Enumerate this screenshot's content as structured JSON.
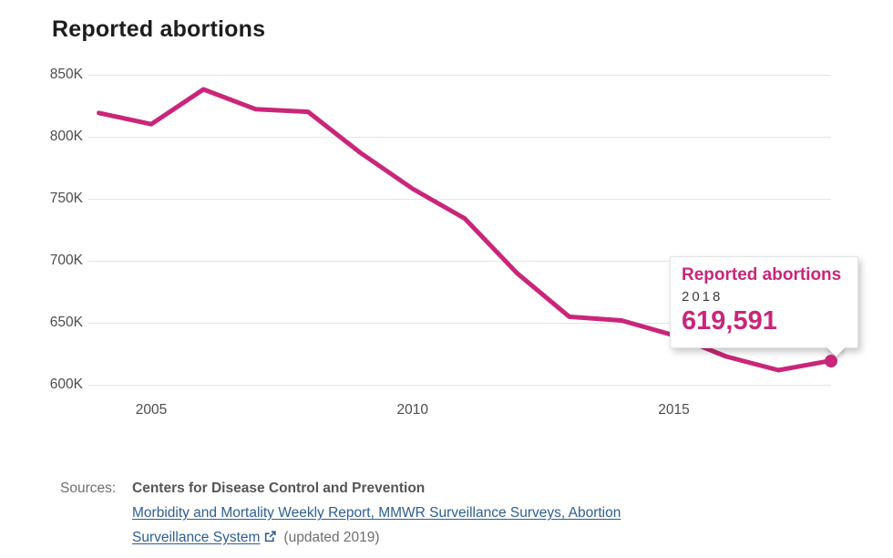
{
  "page": {
    "title": "Reported abortions"
  },
  "chart_data": {
    "type": "line",
    "title": "Reported abortions",
    "series_name": "Reported abortions",
    "x": [
      2004,
      2005,
      2006,
      2007,
      2008,
      2009,
      2010,
      2011,
      2012,
      2013,
      2014,
      2015,
      2016,
      2017,
      2018
    ],
    "values": [
      819000,
      810000,
      838000,
      822000,
      820000,
      787000,
      758000,
      734000,
      690000,
      655000,
      652000,
      640000,
      623000,
      612000,
      619591
    ],
    "ylim": [
      600000,
      850000
    ],
    "xlim": [
      2004,
      2018
    ],
    "y_ticks": [
      {
        "value": 850000,
        "label": "850K"
      },
      {
        "value": 800000,
        "label": "800K"
      },
      {
        "value": 750000,
        "label": "750K"
      },
      {
        "value": 700000,
        "label": "700K"
      },
      {
        "value": 650000,
        "label": "650K"
      },
      {
        "value": 600000,
        "label": "600K"
      }
    ],
    "x_ticks": [
      {
        "value": 2005,
        "label": "2005"
      },
      {
        "value": 2010,
        "label": "2010"
      },
      {
        "value": 2015,
        "label": "2015"
      }
    ],
    "grid": "horizontal-only",
    "legend": "none",
    "highlighted_point": {
      "year": 2018,
      "value": 619591
    }
  },
  "tooltip": {
    "title": "Reported abortions",
    "year": "2018",
    "value": "619,591"
  },
  "sources": {
    "label": "Sources:",
    "primary": "Centers for Disease Control and Prevention",
    "link_line1": "Morbidity and Mortality Weekly Report, MMWR Surveillance Surveys, Abortion",
    "link_line2": "Surveillance System",
    "updated": "(updated 2019)"
  },
  "icons": {
    "external_link": "open-in-new-window arrow-out-of-box"
  },
  "colors": {
    "accent_pink": "#c9267a",
    "link_blue": "#2e5e90",
    "gridline": "#e4e4e4",
    "axis_text": "#4c4c4c",
    "title_text": "#1d1d1d",
    "tooltip_year_text": "#3c3c3c",
    "source_text": "#6e6e6e"
  }
}
